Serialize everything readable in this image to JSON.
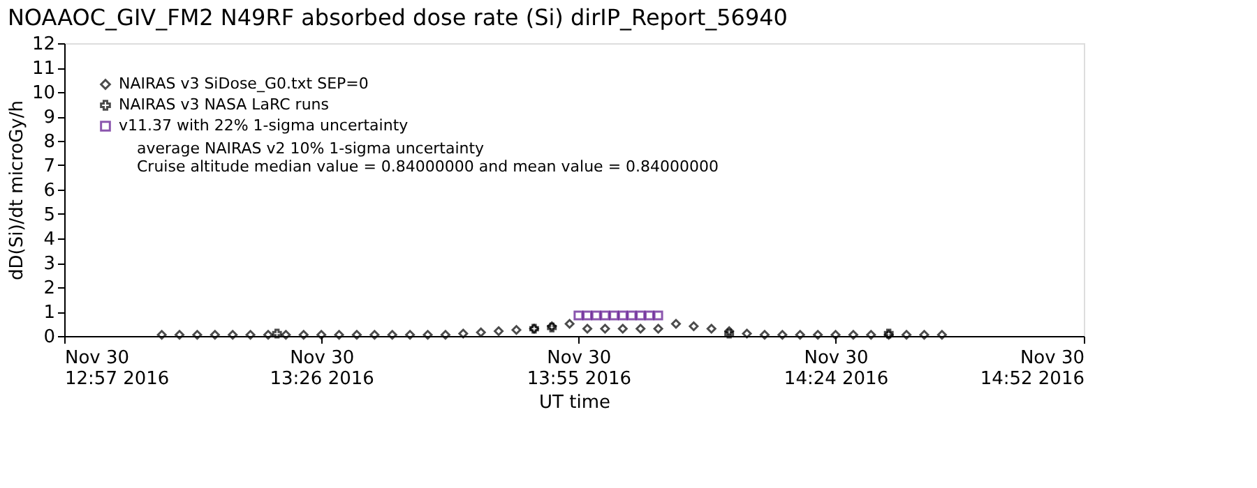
{
  "chart_data": {
    "type": "scatter",
    "title": "NOAAOC_GIV_FM2 N49RF absorbed dose rate (Si) dirIP_Report_56940",
    "xlabel": "UT time",
    "ylabel": "dD(Si)/dt microGy/h",
    "series": [
      {
        "name": "NAIRAS v3 SiDose_G0.txt SEP=0",
        "color": "#000000",
        "marker": "diamond",
        "x": [
          "2016-11-30T13:08",
          "2016-11-30T13:10",
          "2016-11-30T13:12",
          "2016-11-30T13:14",
          "2016-11-30T13:16",
          "2016-11-30T13:18",
          "2016-11-30T13:20",
          "2016-11-30T13:22",
          "2016-11-30T13:24",
          "2016-11-30T13:26",
          "2016-11-30T13:28",
          "2016-11-30T13:30",
          "2016-11-30T13:32",
          "2016-11-30T13:34",
          "2016-11-30T13:36",
          "2016-11-30T13:38",
          "2016-11-30T13:40",
          "2016-11-30T13:42",
          "2016-11-30T13:44",
          "2016-11-30T13:46",
          "2016-11-30T13:48",
          "2016-11-30T13:50",
          "2016-11-30T13:52",
          "2016-11-30T13:54",
          "2016-11-30T13:56",
          "2016-11-30T13:58",
          "2016-11-30T14:00",
          "2016-11-30T14:02",
          "2016-11-30T14:04",
          "2016-11-30T14:06",
          "2016-11-30T14:08",
          "2016-11-30T14:10",
          "2016-11-30T14:12",
          "2016-11-30T14:14",
          "2016-11-30T14:16",
          "2016-11-30T14:18",
          "2016-11-30T14:20",
          "2016-11-30T14:22",
          "2016-11-30T14:24",
          "2016-11-30T14:26",
          "2016-11-30T14:28",
          "2016-11-30T14:30",
          "2016-11-30T14:32",
          "2016-11-30T14:34",
          "2016-11-30T14:36"
        ],
        "values": [
          0.05,
          0.05,
          0.05,
          0.05,
          0.05,
          0.05,
          0.05,
          0.05,
          0.05,
          0.05,
          0.05,
          0.05,
          0.05,
          0.05,
          0.05,
          0.05,
          0.05,
          0.1,
          0.15,
          0.2,
          0.25,
          0.3,
          0.4,
          0.5,
          0.3,
          0.3,
          0.3,
          0.3,
          0.3,
          0.5,
          0.4,
          0.3,
          0.2,
          0.1,
          0.05,
          0.05,
          0.05,
          0.05,
          0.05,
          0.05,
          0.05,
          0.05,
          0.05,
          0.05,
          0.05
        ]
      },
      {
        "name": "NAIRAS v3 NASA LaRC runs",
        "color": "#000000",
        "marker": "cross",
        "x": [
          "2016-11-30T13:21",
          "2016-11-30T13:50",
          "2016-11-30T13:52",
          "2016-11-30T14:12",
          "2016-11-30T14:30"
        ],
        "values": [
          0.1,
          0.3,
          0.35,
          0.1,
          0.1
        ]
      },
      {
        "name": "v11.37 with 22% 1-sigma uncertainty",
        "color": "#5b0f8c",
        "marker": "square",
        "x": [
          "2016-11-30T13:55",
          "2016-11-30T13:56",
          "2016-11-30T13:57",
          "2016-11-30T13:58",
          "2016-11-30T13:59",
          "2016-11-30T14:00",
          "2016-11-30T14:01",
          "2016-11-30T14:02",
          "2016-11-30T14:03",
          "2016-11-30T14:04"
        ],
        "values": [
          0.84,
          0.84,
          0.84,
          0.84,
          0.84,
          0.84,
          0.84,
          0.84,
          0.84,
          0.84
        ]
      }
    ],
    "annotations": [
      "average NAIRAS v2 10% 1-sigma uncertainty",
      "Cruise altitude median value = 0.84000000 and mean value = 0.84000000"
    ],
    "xlim": [
      "2016-11-30T12:57",
      "2016-11-30T14:52"
    ],
    "xticks": [
      {
        "value": "2016-11-30T12:57",
        "label": "Nov 30\n12:57 2016"
      },
      {
        "value": "2016-11-30T13:26",
        "label": "Nov 30\n13:26 2016"
      },
      {
        "value": "2016-11-30T13:55",
        "label": "Nov 30\n13:55 2016"
      },
      {
        "value": "2016-11-30T14:24",
        "label": "Nov 30\n14:24 2016"
      },
      {
        "value": "2016-11-30T14:52",
        "label": "Nov 30\n14:52 2016"
      }
    ],
    "ylim": [
      0,
      12
    ],
    "yticks": [
      0,
      1,
      2,
      3,
      4,
      5,
      6,
      7,
      8,
      9,
      10,
      11,
      12
    ],
    "grid": false,
    "legend": "top left"
  }
}
